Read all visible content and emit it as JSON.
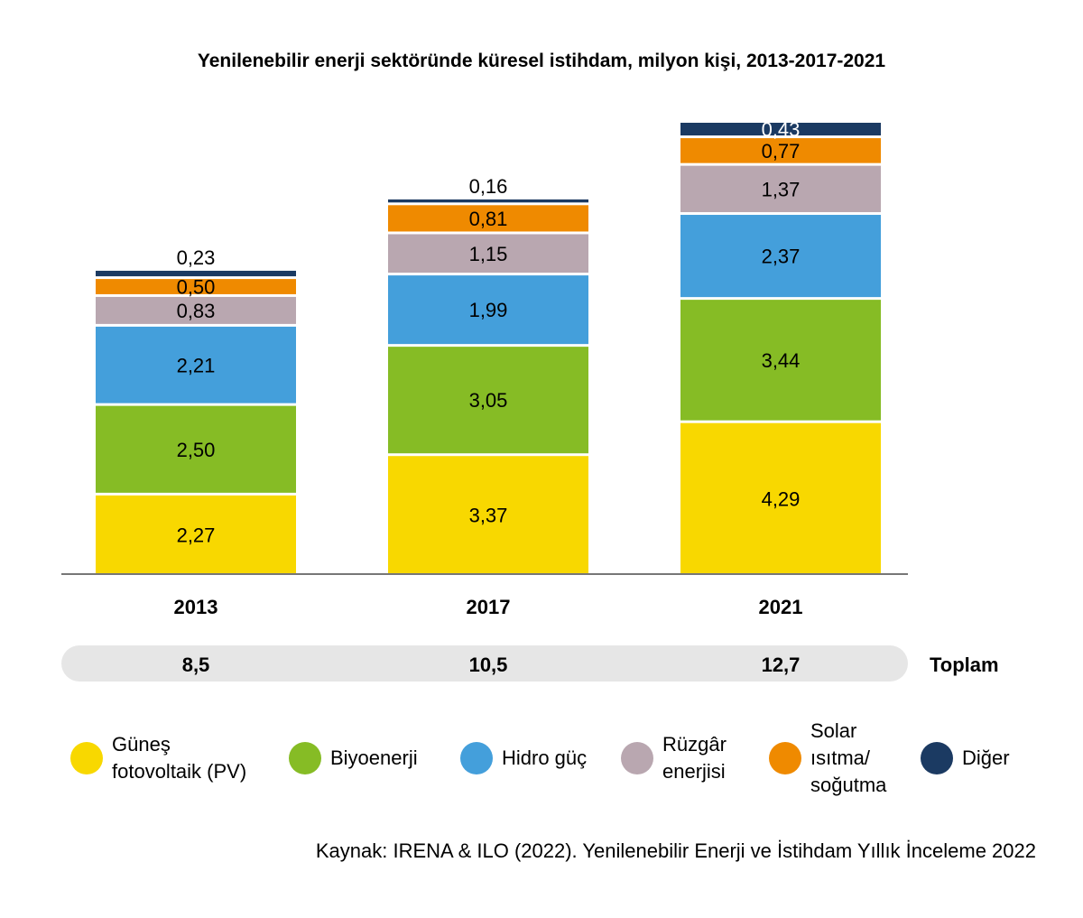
{
  "chart_data": {
    "type": "bar",
    "stacked": true,
    "title": "Yenilenebilir enerji sektöründe küresel istihdam, milyon kişi, 2013-2017-2021",
    "categories": [
      "2013",
      "2017",
      "2021"
    ],
    "series": [
      {
        "name": "Güneş\nfotovoltaik (PV)",
        "color": "#f8d800",
        "values": [
          2.27,
          3.37,
          4.29
        ],
        "labels": [
          "2,27",
          "3,37",
          "4,29"
        ]
      },
      {
        "name": "Biyoenerji",
        "color": "#86bc25",
        "values": [
          2.5,
          3.05,
          3.44
        ],
        "labels": [
          "2,50",
          "3,05",
          "3,44"
        ]
      },
      {
        "name": "Hidro güç",
        "color": "#449fdb",
        "values": [
          2.21,
          1.99,
          2.37
        ],
        "labels": [
          "2,21",
          "1,99",
          "2,37"
        ]
      },
      {
        "name": "Rüzgâr\nenerjisi",
        "color": "#b9a7b0",
        "values": [
          0.83,
          1.15,
          1.37
        ],
        "labels": [
          "0,83",
          "1,15",
          "1,37"
        ]
      },
      {
        "name": "Solar\nısıtma/\nsoğutma",
        "color": "#ef8a00",
        "values": [
          0.5,
          0.81,
          0.77
        ],
        "labels": [
          "0,50",
          "0,81",
          "0,77"
        ]
      },
      {
        "name": "Diğer",
        "color": "#1b3a62",
        "values": [
          0.23,
          0.16,
          0.43
        ],
        "labels": [
          "0,23",
          "0,16",
          "0,43"
        ]
      }
    ],
    "totals": [
      "8,5",
      "10,5",
      "12,7"
    ],
    "totals_label": "Toplam",
    "source": "Kaynak: IRENA & ILO (2022). Yenilenebilir Enerji ve İstihdam Yıllık İnceleme 2022",
    "ylim": [
      0,
      12.8
    ],
    "grid": false,
    "legend": "bottom"
  }
}
